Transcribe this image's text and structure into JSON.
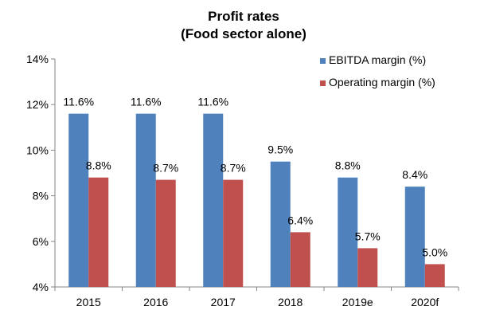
{
  "chart_data": {
    "type": "bar",
    "title": "Profit rates",
    "subtitle": "(Food sector alone)",
    "categories": [
      "2015",
      "2016",
      "2017",
      "2018",
      "2019e",
      "2020f"
    ],
    "series": [
      {
        "name": "EBITDA margin (%)",
        "color": "#4F81BD",
        "values": [
          11.6,
          11.6,
          11.6,
          9.5,
          8.8,
          8.4
        ],
        "labels": [
          "11.6%",
          "11.6%",
          "11.6%",
          "9.5%",
          "8.8%",
          "8.4%"
        ]
      },
      {
        "name": "Operating margin (%)",
        "color": "#C0504D",
        "values": [
          8.8,
          8.7,
          8.7,
          6.4,
          5.7,
          5.0
        ],
        "labels": [
          "8.8%",
          "8.7%",
          "8.7%",
          "6.4%",
          "5.7%",
          "5.0%"
        ]
      }
    ],
    "ylim": [
      4,
      14
    ],
    "yticks": [
      "4%",
      "6%",
      "8%",
      "10%",
      "12%",
      "14%"
    ],
    "ytick_values": [
      4,
      6,
      8,
      10,
      12,
      14
    ],
    "grid": false,
    "legend": "top-right",
    "xlabel": "",
    "ylabel": ""
  }
}
